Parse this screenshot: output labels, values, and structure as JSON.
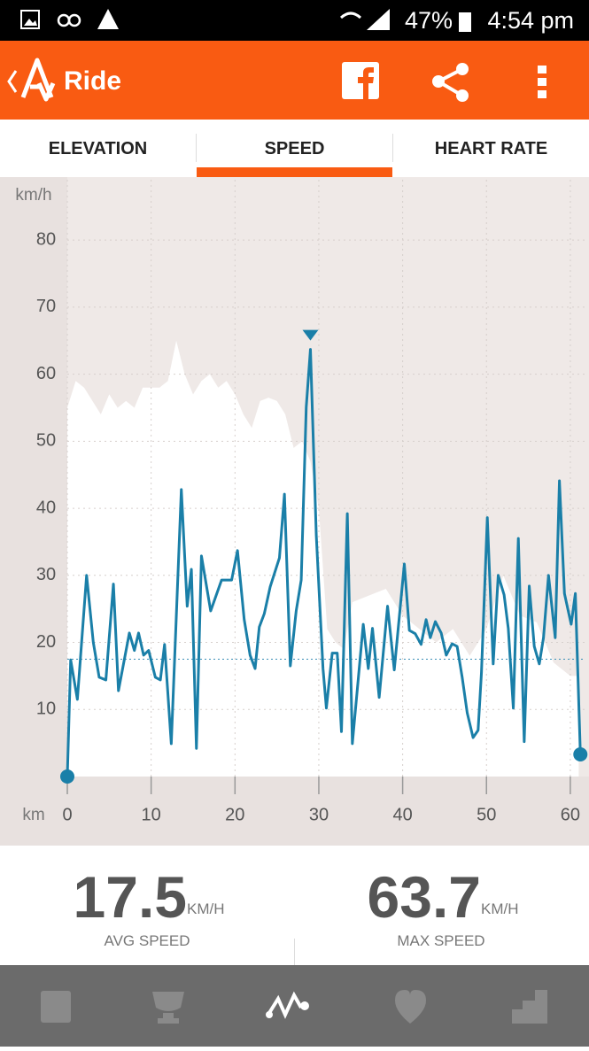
{
  "status_bar": {
    "battery": "47%",
    "time": "4:54 pm"
  },
  "app_bar": {
    "title": "Ride"
  },
  "tabs": {
    "items": [
      "ELEVATION",
      "SPEED",
      "HEART RATE"
    ],
    "selected": 1
  },
  "chart_data": {
    "type": "line",
    "y_label": "km/h",
    "x_label": "km",
    "xlim": [
      0,
      61.7
    ],
    "ylim": [
      0,
      89
    ],
    "xticks": [
      0,
      10,
      20,
      30,
      40,
      50,
      60
    ],
    "yticks": [
      10,
      20,
      30,
      40,
      50,
      60,
      70,
      80
    ],
    "grid": true,
    "series": [
      {
        "color": "#1a7fa8",
        "x": [
          0,
          0.4,
          1.2,
          2.3,
          3.1,
          3.8,
          4.6,
          5.5,
          6.1,
          7.4,
          8.0,
          8.5,
          9.1,
          9.7,
          10.5,
          11.1,
          11.6,
          12.4,
          13.6,
          14.3,
          14.8,
          15.4,
          16.0,
          17.1,
          18.4,
          19.6,
          20.3,
          21.1,
          21.8,
          22.4,
          22.9,
          23.5,
          24.2,
          25.3,
          25.9,
          26.6,
          27.3,
          27.9,
          28.5,
          29.0,
          29.7,
          30.5,
          30.9,
          31.6,
          32.2,
          32.7,
          33.4,
          34.0,
          35.3,
          35.9,
          36.4,
          37.2,
          38.2,
          39.0,
          40.2,
          40.8,
          41.5,
          42.2,
          42.8,
          43.3,
          43.9,
          44.6,
          45.2,
          45.9,
          46.5,
          47.1,
          47.7,
          48.4,
          49.0,
          49.4,
          50.1,
          50.8,
          51.4,
          52.1,
          52.6,
          53.2,
          53.8,
          54.5,
          55.1,
          55.7,
          56.3,
          56.8,
          57.4,
          58.2,
          58.7,
          59.3,
          60.1,
          60.6,
          61.2
        ],
        "values": [
          0,
          17.4,
          11.5,
          30,
          20,
          14.8,
          14.4,
          28.7,
          12.8,
          21.4,
          18.8,
          21.4,
          18.1,
          18.8,
          14.8,
          14.4,
          19.7,
          4.9,
          42.8,
          25.4,
          30.9,
          4.2,
          32.9,
          24.7,
          29.3,
          29.3,
          33.7,
          23.4,
          18.1,
          16.1,
          22.3,
          24.3,
          28.3,
          32.6,
          42.1,
          16.5,
          24.7,
          29.3,
          55.1,
          63.7,
          35.9,
          16.1,
          10.2,
          18.4,
          18.4,
          6.7,
          39.2,
          4.9,
          22.7,
          16.1,
          22.1,
          11.8,
          25.4,
          15.9,
          31.7,
          21.8,
          21.3,
          19.7,
          23.4,
          20.7,
          23.1,
          21.4,
          18.1,
          19.8,
          19.4,
          14.8,
          9.5,
          5.8,
          6.9,
          15.5,
          38.6,
          16.8,
          30,
          27.1,
          22.1,
          10.2,
          35.5,
          5.2,
          28.4,
          19.4,
          16.8,
          20.7,
          30,
          20.7,
          44.1,
          27.3,
          22.7,
          27.3,
          3.3
        ]
      }
    ],
    "elevation": {
      "color": "#ffffff",
      "x": [
        0,
        1,
        2,
        3,
        4,
        5,
        6,
        7,
        8,
        9,
        10,
        11,
        12,
        12.5,
        13,
        14,
        15,
        16,
        17,
        18,
        19,
        20,
        21,
        22,
        23,
        24,
        25,
        26,
        27,
        28,
        29,
        30,
        31,
        32,
        33,
        34,
        36,
        38,
        40,
        42,
        44,
        46,
        48,
        50,
        52,
        54,
        56,
        58,
        60,
        61
      ],
      "values": [
        55,
        59,
        58,
        56,
        54,
        57,
        55,
        56,
        55,
        58,
        58,
        58,
        59,
        62,
        65,
        60,
        57,
        59,
        60,
        58,
        59,
        57,
        54,
        52,
        56,
        56.5,
        56,
        54,
        49,
        50,
        47,
        40,
        22,
        20,
        19,
        26,
        27,
        28,
        24,
        22,
        20,
        22,
        18,
        22,
        30,
        24,
        23,
        17,
        15,
        15
      ]
    }
  },
  "stats": [
    {
      "value": 17.5,
      "unit": "KM/H",
      "label": "AVG SPEED"
    },
    {
      "value": 63.7,
      "unit": "KM/H",
      "label": "MAX SPEED"
    }
  ]
}
